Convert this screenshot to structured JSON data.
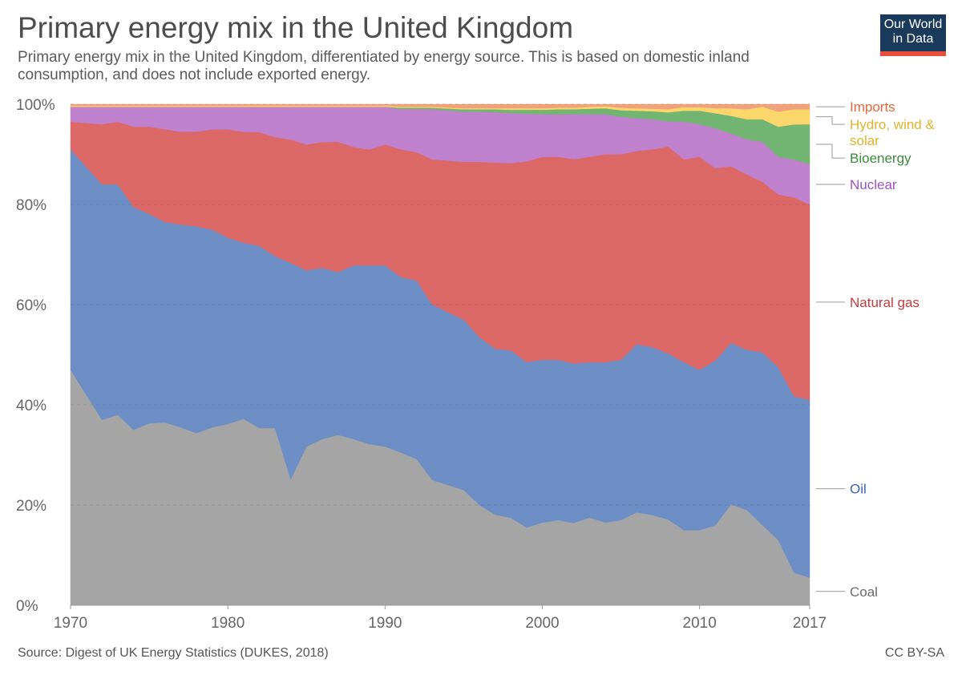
{
  "header": {
    "title": "Primary energy mix in the United Kingdom",
    "subtitle": "Primary energy mix in the United Kingdom, differentiated by energy source. This is based on domestic inland consumption, and does not include exported energy.",
    "logo_line1": "Our World",
    "logo_line2": "in Data"
  },
  "footer": {
    "source": "Source: Digest of UK Energy Statistics (DUKES, 2018)",
    "license": "CC BY-SA"
  },
  "chart_data": {
    "type": "area",
    "stacked": true,
    "title": "Primary energy mix in the United Kingdom",
    "xlabel": "",
    "ylabel": "",
    "xlim": [
      1970,
      2017
    ],
    "ylim": [
      0,
      100
    ],
    "x_ticks": [
      "1970",
      "1980",
      "1990",
      "2000",
      "2010",
      "2017"
    ],
    "y_ticks": [
      "0%",
      "20%",
      "40%",
      "60%",
      "80%",
      "100%"
    ],
    "grid": true,
    "legend": "right",
    "x": [
      1970,
      1972,
      1973,
      1974,
      1975,
      1976,
      1977,
      1978,
      1979,
      1980,
      1981,
      1982,
      1983,
      1984,
      1985,
      1986,
      1987,
      1988,
      1989,
      1990,
      1991,
      1992,
      1993,
      1995,
      1996,
      1997,
      1998,
      1999,
      2000,
      2001,
      2002,
      2003,
      2004,
      2005,
      2006,
      2007,
      2008,
      2009,
      2010,
      2011,
      2012,
      2013,
      2014,
      2015,
      2016,
      2017
    ],
    "series": [
      {
        "name": "Coal",
        "color": "#a5a5a5",
        "label_color": "#6b6b6b",
        "values": [
          47,
          37,
          38,
          35,
          36.5,
          36.5,
          35.5,
          34.5,
          35.5,
          36,
          37,
          35,
          35,
          25,
          31.5,
          33,
          34,
          33,
          32,
          31.5,
          30.5,
          29,
          25,
          23,
          20,
          18,
          17.5,
          15.5,
          16.5,
          17,
          16.5,
          17.5,
          16.5,
          17,
          18.5,
          18,
          17,
          15,
          15,
          16,
          20,
          19,
          16,
          13,
          6.5,
          5.5
        ]
      },
      {
        "name": "Oil",
        "color": "#6d8ec4",
        "label_color": "#3b63b0",
        "values": [
          44,
          47,
          46,
          44.5,
          42,
          40,
          40.5,
          41.5,
          39.5,
          37,
          35,
          36,
          34,
          43,
          35,
          34,
          32.5,
          34.5,
          35.5,
          36,
          35,
          35.5,
          35,
          34,
          33.5,
          33,
          33.5,
          33,
          32.5,
          32,
          32,
          31,
          32,
          32,
          33.5,
          33.5,
          33,
          33.5,
          32,
          33,
          32,
          32,
          34.5,
          34.5,
          35,
          35.5
        ]
      },
      {
        "name": "Natural gas",
        "color": "#dc6767",
        "label_color": "#c43a3a",
        "values": [
          5.5,
          12,
          12.5,
          16,
          17.5,
          18.5,
          18.5,
          19,
          20,
          21.5,
          22,
          22.5,
          23.5,
          24.5,
          25,
          25,
          26,
          23.5,
          23,
          24,
          25.5,
          25.5,
          29,
          31.5,
          35,
          37,
          37.5,
          40,
          40.5,
          40.5,
          41,
          41,
          41.5,
          41,
          38.5,
          39.5,
          41,
          40.5,
          42.5,
          38.5,
          35,
          35,
          34,
          34.5,
          39.5,
          39
        ]
      },
      {
        "name": "Nuclear",
        "color": "#bf80cd",
        "label_color": "#a04fc3",
        "values": [
          3,
          3.5,
          3,
          4,
          4,
          4.5,
          5,
          5,
          4.5,
          4.5,
          5,
          5,
          6,
          6.5,
          7.5,
          7,
          7,
          8,
          8.5,
          7.5,
          8,
          8.5,
          10,
          10,
          10,
          10,
          10,
          9.5,
          8.5,
          8.5,
          9,
          8.5,
          8,
          7.5,
          6.5,
          6,
          5,
          7.5,
          6.5,
          8,
          6.5,
          7,
          8,
          7.5,
          7.5,
          8
        ]
      },
      {
        "name": "Bioenergy",
        "color": "#72b472",
        "label_color": "#3c8c3c",
        "values": [
          0,
          0,
          0,
          0,
          0,
          0,
          0,
          0,
          0,
          0,
          0,
          0,
          0,
          0,
          0,
          0,
          0,
          0,
          0,
          0,
          0.3,
          0.3,
          0.3,
          0.5,
          0.5,
          0.6,
          0.7,
          0.8,
          0.9,
          1,
          1,
          1.1,
          1.2,
          1.3,
          1.5,
          1.6,
          1.8,
          2.2,
          2.7,
          3,
          3.5,
          4,
          4.5,
          6,
          7,
          8
        ]
      },
      {
        "name": "Hydro, wind & solar",
        "color": "#fbd66a",
        "label_color": "#e3b22a",
        "values": [
          0.2,
          0.2,
          0.2,
          0.2,
          0.2,
          0.2,
          0.2,
          0.2,
          0.2,
          0.2,
          0.2,
          0.2,
          0.2,
          0.2,
          0.2,
          0.2,
          0.2,
          0.2,
          0.2,
          0.2,
          0.2,
          0.2,
          0.2,
          0.2,
          0.2,
          0.2,
          0.3,
          0.3,
          0.3,
          0.3,
          0.3,
          0.4,
          0.4,
          0.5,
          0.5,
          0.5,
          0.6,
          0.7,
          0.7,
          1,
          1.5,
          2,
          2.5,
          3,
          3,
          3
        ]
      },
      {
        "name": "Imports",
        "color": "#f0a27a",
        "label_color": "#e8683a",
        "values": [
          0.3,
          0.3,
          0.3,
          0.3,
          0.3,
          0.3,
          0.3,
          0.3,
          0.3,
          0.3,
          0.3,
          0.3,
          0.3,
          0.3,
          0.3,
          0.3,
          0.3,
          0.3,
          0.3,
          0.3,
          0.5,
          0.5,
          0.5,
          0.8,
          0.8,
          0.8,
          0.8,
          0.8,
          0.8,
          0.7,
          0.7,
          0.5,
          0.4,
          0.7,
          0.8,
          0.9,
          1,
          0.6,
          0.6,
          0.8,
          0.8,
          1,
          0.5,
          1.5,
          1,
          1
        ]
      }
    ]
  }
}
